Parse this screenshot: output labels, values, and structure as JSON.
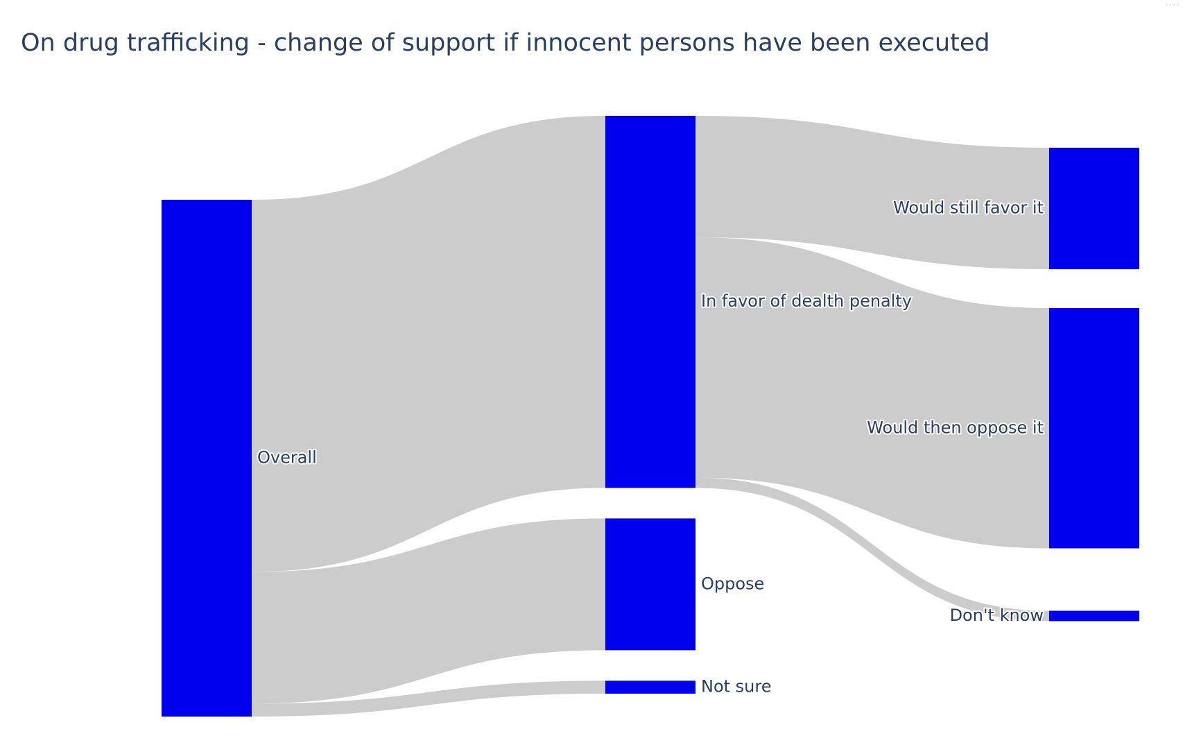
{
  "title": "On drug trafficking - change of support if innocent persons have been executed",
  "chart_data": {
    "type": "sankey",
    "title": "On drug trafficking - change of support if innocent persons have been executed",
    "node_color": "#0000ee",
    "link_color": "#cccccc",
    "nodes": [
      {
        "id": "overall",
        "label": "Overall",
        "column": 0
      },
      {
        "id": "favor",
        "label": "In favor of dealth penalty",
        "column": 1
      },
      {
        "id": "oppose",
        "label": "Oppose",
        "column": 1
      },
      {
        "id": "notsure",
        "label": "Not sure",
        "column": 1
      },
      {
        "id": "still",
        "label": "Would still favor it",
        "column": 2
      },
      {
        "id": "then",
        "label": "Would then oppose it",
        "column": 2
      },
      {
        "id": "dontknow",
        "label": "Don't know",
        "column": 2
      }
    ],
    "links": [
      {
        "source": "overall",
        "target": "favor",
        "value": 72
      },
      {
        "source": "overall",
        "target": "oppose",
        "value": 25.5
      },
      {
        "source": "overall",
        "target": "notsure",
        "value": 2.5
      },
      {
        "source": "favor",
        "target": "still",
        "value": 23.5
      },
      {
        "source": "favor",
        "target": "then",
        "value": 46.5
      },
      {
        "source": "favor",
        "target": "dontknow",
        "value": 2
      }
    ]
  }
}
